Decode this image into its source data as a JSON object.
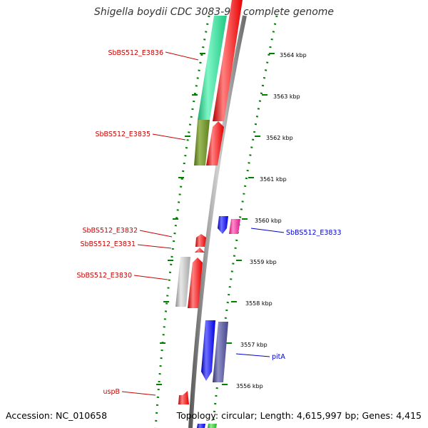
{
  "title": "Shigella boydii CDC 3083-94, complete genome",
  "footer": {
    "accession": "Accession: NC_010658",
    "summary": "Topology: circular; Length: 4,615,997 bp; Genes: 4,415"
  },
  "colors": {
    "backbone": "#808080",
    "ticks": "#008000",
    "left_label": "#cc0000",
    "right_label": "#0000cc",
    "seafoam": "#26e59a",
    "olive": "#6b8c26",
    "red": "#ff0000",
    "gray": "#b0b0b0",
    "blue": "#0000ff",
    "magenta": "#ff1fa3",
    "slate": "#505098",
    "green": "#33cc33"
  },
  "scale": {
    "unit": "kbp",
    "ticks": [
      {
        "label": "3564 kbp"
      },
      {
        "label": "3563 kbp"
      },
      {
        "label": "3562 kbp"
      },
      {
        "label": "3561 kbp"
      },
      {
        "label": "3560 kbp"
      },
      {
        "label": "3559 kbp"
      },
      {
        "label": "3558 kbp"
      },
      {
        "label": "3557 kbp"
      },
      {
        "label": "3556 kbp"
      }
    ]
  },
  "gene_labels": {
    "left": [
      "SbBS512_E3836",
      "SbBS512_E3835",
      "SbBS512_E3832",
      "SbBS512_E3831",
      "SbBS512_E3830",
      "uspB"
    ],
    "right": [
      "SbBS512_E3833",
      "pitA"
    ]
  }
}
